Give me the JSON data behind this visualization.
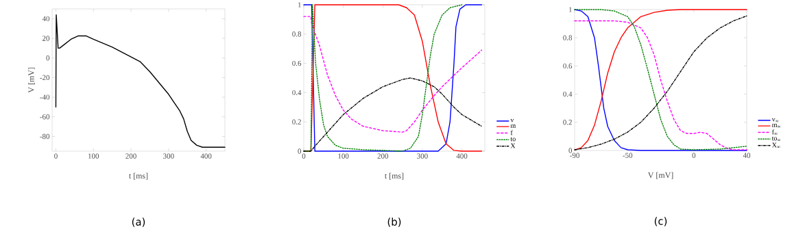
{
  "chart_data": [
    {
      "type": "line",
      "xlabel": "t [ms]",
      "ylabel": "V [mV]",
      "annotations": [
        "(a)"
      ],
      "xlim": [
        -10,
        450
      ],
      "ylim": [
        -95,
        50
      ],
      "xticks": [
        0,
        100,
        200,
        300,
        400
      ],
      "yticks": [
        -80,
        -60,
        -40,
        -20,
        0,
        20,
        40
      ],
      "grid": false,
      "legend": false,
      "series": [
        {
          "color": "#000000",
          "line_style": "solid",
          "x": [
            0,
            1,
            6,
            10,
            20,
            40,
            60,
            80,
            100,
            150,
            200,
            225,
            250,
            300,
            330,
            340,
            350,
            360,
            375,
            390,
            450
          ],
          "values": [
            -50,
            44,
            10,
            10,
            13,
            19,
            22.5,
            22.5,
            19,
            11,
            1,
            -4,
            -14,
            -37,
            -54,
            -62,
            -75,
            -84,
            -89,
            -91,
            -91
          ]
        }
      ]
    },
    {
      "type": "line",
      "xlabel": "t [ms]",
      "annotations": [
        "(b)"
      ],
      "xlim": [
        0,
        458
      ],
      "ylim": [
        0,
        1
      ],
      "xticks": [
        0,
        100,
        200,
        300,
        400
      ],
      "yticks": [
        0,
        0.2,
        0.4,
        0.6,
        0.8,
        1
      ],
      "grid": false,
      "legend": "right",
      "series": [
        {
          "name": "v",
          "color": "#0000ff",
          "line_style": "solid",
          "x": [
            0,
            20,
            28,
            340,
            360,
            370,
            380,
            385,
            395,
            410,
            450
          ],
          "values": [
            1,
            1,
            0,
            0,
            0.05,
            0.2,
            0.6,
            0.85,
            0.97,
            1,
            1
          ]
        },
        {
          "name": "m",
          "color": "#ff0000",
          "line_style": "solid",
          "x": [
            0,
            18,
            28,
            240,
            260,
            280,
            300,
            320,
            340,
            360,
            380,
            400,
            450
          ],
          "values": [
            0,
            0,
            1,
            1,
            0.98,
            0.93,
            0.75,
            0.45,
            0.2,
            0.05,
            0.005,
            0,
            0
          ]
        },
        {
          "name": "f",
          "color": "#ff00ff",
          "line_style": "dashed",
          "x": [
            0,
            18,
            20,
            40,
            60,
            80,
            100,
            120,
            150,
            200,
            250,
            260,
            280,
            300,
            330,
            350,
            400,
            450
          ],
          "values": [
            0.92,
            0.92,
            0.87,
            0.72,
            0.52,
            0.38,
            0.28,
            0.22,
            0.17,
            0.14,
            0.13,
            0.14,
            0.2,
            0.28,
            0.38,
            0.44,
            0.57,
            0.69
          ]
        },
        {
          "name": "to",
          "color": "#008000",
          "line_style": "dotted",
          "x": [
            0,
            18,
            22,
            30,
            40,
            50,
            60,
            80,
            100,
            150,
            250,
            270,
            290,
            300,
            310,
            320,
            330,
            350,
            370,
            400
          ],
          "values": [
            0,
            0,
            1,
            0.6,
            0.35,
            0.18,
            0.1,
            0.04,
            0.02,
            0.01,
            0,
            0.02,
            0.1,
            0.25,
            0.45,
            0.65,
            0.8,
            0.93,
            0.98,
            1
          ]
        },
        {
          "name": "X",
          "color": "#000000",
          "line_style": "dashdot",
          "x": [
            0,
            18,
            30,
            50,
            100,
            150,
            200,
            250,
            270,
            300,
            330,
            350,
            380,
            400,
            450
          ],
          "values": [
            0,
            0,
            0.04,
            0.1,
            0.25,
            0.36,
            0.44,
            0.49,
            0.5,
            0.48,
            0.44,
            0.39,
            0.3,
            0.25,
            0.17
          ]
        }
      ]
    },
    {
      "type": "line",
      "xlabel": "V [mV]",
      "annotations": [
        "(c)"
      ],
      "xlim": [
        -90,
        40
      ],
      "ylim": [
        0,
        1
      ],
      "xticks": [
        -90,
        -50,
        0,
        40
      ],
      "yticks": [
        0,
        0.2,
        0.4,
        0.6,
        0.8,
        1
      ],
      "grid": false,
      "legend": "right",
      "series": [
        {
          "name": "v$_{∞}$",
          "color": "#0000ff",
          "line_style": "solid",
          "x": [
            -90,
            -85,
            -80,
            -75,
            -72,
            -70,
            -68,
            -65,
            -60,
            -55,
            -50,
            -40,
            40
          ],
          "values": [
            1,
            0.99,
            0.95,
            0.8,
            0.6,
            0.45,
            0.3,
            0.17,
            0.07,
            0.02,
            0.005,
            0,
            0
          ]
        },
        {
          "name": "m$_{∞}$",
          "color": "#ff0000",
          "line_style": "solid",
          "x": [
            -90,
            -85,
            -80,
            -75,
            -70,
            -65,
            -60,
            -55,
            -50,
            -40,
            -30,
            -20,
            -10,
            40
          ],
          "values": [
            0.003,
            0.02,
            0.07,
            0.18,
            0.35,
            0.55,
            0.7,
            0.8,
            0.87,
            0.95,
            0.98,
            0.995,
            1,
            1
          ]
        },
        {
          "name": "f$_{∞}$",
          "color": "#ff00ff",
          "line_style": "dashed",
          "x": [
            -90,
            -60,
            -50,
            -40,
            -35,
            -30,
            -25,
            -20,
            -15,
            -10,
            -5,
            0,
            5,
            10,
            15,
            20,
            25,
            30,
            40
          ],
          "values": [
            0.92,
            0.92,
            0.91,
            0.87,
            0.8,
            0.68,
            0.5,
            0.35,
            0.22,
            0.14,
            0.12,
            0.12,
            0.13,
            0.12,
            0.08,
            0.04,
            0.015,
            0.005,
            0.005
          ]
        },
        {
          "name": "to$_{∞}$",
          "color": "#008000",
          "line_style": "dotted",
          "x": [
            -90,
            -70,
            -60,
            -50,
            -45,
            -40,
            -35,
            -30,
            -25,
            -20,
            -15,
            -10,
            0,
            20,
            40
          ],
          "values": [
            1,
            1,
            0.99,
            0.95,
            0.88,
            0.75,
            0.58,
            0.4,
            0.22,
            0.1,
            0.04,
            0.01,
            0.005,
            0.01,
            0.03
          ]
        },
        {
          "name": "X$_{∞}$",
          "color": "#000000",
          "line_style": "dashdot",
          "x": [
            -90,
            -80,
            -70,
            -60,
            -50,
            -40,
            -30,
            -20,
            -10,
            0,
            10,
            20,
            30,
            40
          ],
          "values": [
            0.005,
            0.02,
            0.045,
            0.08,
            0.13,
            0.2,
            0.3,
            0.42,
            0.56,
            0.7,
            0.8,
            0.87,
            0.92,
            0.955
          ]
        }
      ]
    }
  ]
}
